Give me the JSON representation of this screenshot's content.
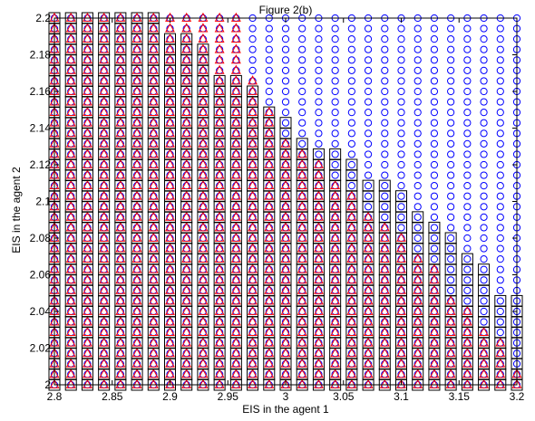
{
  "chart_data": {
    "type": "scatter",
    "title": "Figure 2(b)",
    "xlabel": "EIS in the agent 1",
    "ylabel": "EIS in the agent 2",
    "xlim": [
      2.8,
      3.2
    ],
    "ylim": [
      2.0,
      2.2
    ],
    "x_ticks": [
      "2.8",
      "2.85",
      "2.9",
      "2.95",
      "3",
      "3.05",
      "3.1",
      "3.15",
      "3.2"
    ],
    "y_ticks": [
      "2",
      "2.02",
      "2.04",
      "2.06",
      "2.08",
      "2.1",
      "2.12",
      "2.14",
      "2.16",
      "2.18",
      "2.2"
    ],
    "grid": false,
    "legend": "none",
    "colors": {
      "circle": "#0000ff",
      "square": "#000000",
      "triangle": "#ff0000"
    },
    "grid_points": {
      "x_start": 2.8,
      "x_step": 0.014285714,
      "x_count": 29,
      "y_start": 2.0,
      "y_step": 0.005714286,
      "y_count": 36
    },
    "series": [
      {
        "marker": "circle",
        "region": "all grid points (every x, every y)"
      },
      {
        "marker": "square",
        "boundary_y_max_per_x_column": [
          2.2,
          2.2,
          2.2,
          2.2,
          2.2,
          2.2,
          2.2,
          2.194,
          2.189,
          2.183,
          2.171,
          2.166,
          2.16,
          2.149,
          2.143,
          2.137,
          2.131,
          2.126,
          2.12,
          2.114,
          2.109,
          2.103,
          2.097,
          2.091,
          2.08,
          2.069,
          2.063,
          2.051,
          2.046
        ]
      },
      {
        "marker": "triangle",
        "boundary_y_max_per_x_column": [
          2.2,
          2.2,
          2.2,
          2.2,
          2.2,
          2.2,
          2.2,
          2.2,
          2.2,
          2.2,
          2.2,
          2.2,
          2.166,
          2.149,
          2.137,
          2.131,
          2.12,
          2.114,
          2.103,
          2.097,
          2.086,
          2.08,
          2.069,
          2.063,
          2.051,
          2.04,
          2.029,
          2.023,
          2.011
        ]
      }
    ]
  }
}
